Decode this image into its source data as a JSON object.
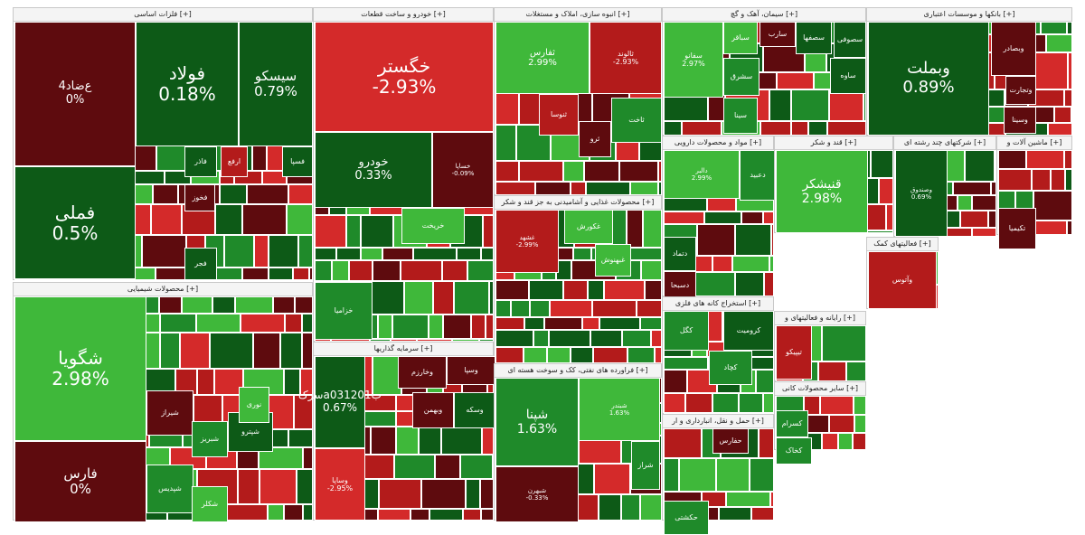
{
  "colors": {
    "dark_green": "#0d5a17",
    "green": "#1f8a2a",
    "light_green": "#3fb83a",
    "dark_red": "#5e0b0e",
    "red": "#b31b1b",
    "bright_red": "#d42a2a"
  },
  "chart_data": {
    "type": "treemap",
    "sectors": [
      {
        "title": "فلزات اساسی [+]",
        "stocks": [
          {
            "symbol": "ع‌ضاد4",
            "change": "0%"
          },
          {
            "symbol": "فولاد",
            "change": "0.18%"
          },
          {
            "symbol": "سیسکو",
            "change": "0.79%"
          },
          {
            "symbol": "فملی",
            "change": "0.5%"
          },
          {
            "symbol": "فاذر",
            "change": ""
          },
          {
            "symbol": "فخوز",
            "change": ""
          },
          {
            "symbol": "فسپا",
            "change": ""
          },
          {
            "symbol": "ارفع",
            "change": ""
          },
          {
            "symbol": "فجر",
            "change": ""
          }
        ]
      },
      {
        "title": "خودرو و ساخت قطعات [+]",
        "stocks": [
          {
            "symbol": "خگستر",
            "change": "-2.93%"
          },
          {
            "symbol": "خودرو",
            "change": "0.33%"
          },
          {
            "symbol": "خساپا",
            "change": "-0.09%"
          },
          {
            "symbol": "خزامیا",
            "change": ""
          },
          {
            "symbol": "خریخت",
            "change": ""
          }
        ]
      },
      {
        "title": "انبوه سازی، املاک و مستغلات [+]",
        "stocks": [
          {
            "symbol": "ثفارس",
            "change": "2.99%"
          },
          {
            "symbol": "ثالوند",
            "change": "-2.93%"
          },
          {
            "symbol": "ثنوسا",
            "change": ""
          },
          {
            "symbol": "ثرو",
            "change": ""
          },
          {
            "symbol": "ثاخت",
            "change": ""
          }
        ]
      },
      {
        "title": "سیمان، آهک و گچ [+]",
        "stocks": [
          {
            "symbol": "سفانو",
            "change": "2.97%"
          },
          {
            "symbol": "سباقر",
            "change": ""
          },
          {
            "symbol": "سشرق",
            "change": ""
          },
          {
            "symbol": "سینا",
            "change": ""
          },
          {
            "symbol": "سارب",
            "change": ""
          },
          {
            "symbol": "سصفها",
            "change": ""
          },
          {
            "symbol": "سصوفی",
            "change": ""
          },
          {
            "symbol": "ساوه",
            "change": ""
          }
        ]
      },
      {
        "title": "بانکها و موسسات اعتباری [+]",
        "stocks": [
          {
            "symbol": "وبملت",
            "change": "0.89%"
          },
          {
            "symbol": "وبصادر",
            "change": ""
          },
          {
            "symbol": "وتجارت",
            "change": ""
          },
          {
            "symbol": "وسینا",
            "change": ""
          }
        ]
      },
      {
        "title": "محصولات شیمیایی [+]",
        "stocks": [
          {
            "symbol": "شگویا",
            "change": "2.98%"
          },
          {
            "symbol": "فارس",
            "change": "0%"
          },
          {
            "symbol": "شیراز",
            "change": ""
          },
          {
            "symbol": "شپدیس",
            "change": ""
          },
          {
            "symbol": "شبریز",
            "change": ""
          },
          {
            "symbol": "شپترو",
            "change": ""
          },
          {
            "symbol": "نوری",
            "change": ""
          },
          {
            "symbol": "شکلر",
            "change": ""
          }
        ]
      },
      {
        "title": "مواد و محصولات دارویی [+]",
        "stocks": [
          {
            "symbol": "دالبر",
            "change": "2.99%"
          },
          {
            "symbol": "دعبید",
            "change": ""
          },
          {
            "symbol": "دتماد",
            "change": ""
          },
          {
            "symbol": "دسبحا",
            "change": ""
          }
        ]
      },
      {
        "title": "قند و شکر [+]",
        "stocks": [
          {
            "symbol": "قنیشکر",
            "change": "2.98%"
          }
        ]
      },
      {
        "title": "شرکتهای چند رشته ای [+]",
        "stocks": [
          {
            "symbol": "وصندوق",
            "change": "0.69%"
          }
        ]
      },
      {
        "title": "ماشین آلات و [+]",
        "stocks": [
          {
            "symbol": "تکیمیا",
            "change": ""
          }
        ]
      },
      {
        "title": "محصولات غذایی و آشامیدنی به جز قند و شکر [+]",
        "stocks": [
          {
            "symbol": "غشهد",
            "change": "-2.99%"
          },
          {
            "symbol": "غکورش",
            "change": ""
          },
          {
            "symbol": "غبهنوش",
            "change": ""
          }
        ]
      },
      {
        "title": "استخراج کانه های فلزی [+]",
        "stocks": [
          {
            "symbol": "کگل",
            "change": ""
          },
          {
            "symbol": "کچاد",
            "change": ""
          },
          {
            "symbol": "کرومیت",
            "change": ""
          }
        ]
      },
      {
        "title": "سرمایه گذاریها [+]",
        "stocks": [
          {
            "symbol": "سرکa0312ب01",
            "change": "0.67%"
          },
          {
            "symbol": "وسپا",
            "change": ""
          },
          {
            "symbol": "وبهمن",
            "change": ""
          },
          {
            "symbol": "وسکه",
            "change": ""
          },
          {
            "symbol": "وساپا",
            "change": "-2.95%"
          },
          {
            "symbol": "وخارزم",
            "change": ""
          }
        ]
      },
      {
        "title": "فراورده های نفتی، کک و سوخت هسته ای [+]",
        "stocks": [
          {
            "symbol": "شپنا",
            "change": "1.63%"
          },
          {
            "symbol": "شبندر",
            "change": "1.63%"
          },
          {
            "symbol": "شبهرن",
            "change": "-0.33%"
          },
          {
            "symbol": "شراز",
            "change": ""
          }
        ]
      },
      {
        "title": "حمل و نقل، انبارداری و ار [+]",
        "stocks": [
          {
            "symbol": "حکشتی",
            "change": ""
          },
          {
            "symbol": "حفارس",
            "change": ""
          }
        ]
      },
      {
        "title": "سایر محصولات کانی [+]",
        "stocks": [
          {
            "symbol": "کسرام",
            "change": ""
          },
          {
            "symbol": "کخاک",
            "change": ""
          }
        ]
      },
      {
        "title": "رایانه و فعالیتهای و [+]",
        "stocks": [
          {
            "symbol": "تیپیکو",
            "change": ""
          }
        ]
      },
      {
        "title": "فعالیتهای کمک [+]",
        "stocks": [
          {
            "symbol": "وآتوس",
            "change": ""
          }
        ]
      }
    ]
  }
}
